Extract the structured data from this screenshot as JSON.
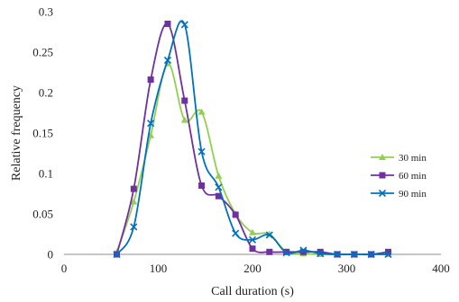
{
  "chart_data": {
    "type": "line",
    "xlabel": "Call duration (s)",
    "ylabel": "Relative frequency",
    "xlim": [
      0,
      400
    ],
    "ylim": [
      0,
      0.3
    ],
    "x_ticks": [
      "0",
      "100",
      "200",
      "300",
      "400"
    ],
    "y_ticks": [
      "0",
      "0.05",
      "0.1",
      "0.15",
      "0.2",
      "0.25",
      "0.3"
    ],
    "grid": false,
    "legend_position": "right",
    "series": [
      {
        "name": "30 min",
        "color": "#92d050",
        "marker": "triangle",
        "points": [
          [
            56,
            0.003
          ],
          [
            74,
            0.065
          ],
          [
            92,
            0.147
          ],
          [
            110,
            0.236
          ],
          [
            128,
            0.166
          ],
          [
            146,
            0.176
          ],
          [
            164,
            0.097
          ],
          [
            182,
            0.05
          ],
          [
            200,
            0.027
          ],
          [
            218,
            0.025
          ],
          [
            236,
            0.003
          ],
          [
            254,
            0.001
          ],
          [
            272,
            0.0
          ],
          [
            290,
            0.0
          ],
          [
            308,
            0.0
          ],
          [
            326,
            0.0
          ],
          [
            344,
            0.0
          ]
        ]
      },
      {
        "name": "60 min",
        "color": "#7030a0",
        "marker": "square",
        "points": [
          [
            56,
            0.0
          ],
          [
            74,
            0.081
          ],
          [
            92,
            0.216
          ],
          [
            110,
            0.285
          ],
          [
            128,
            0.19
          ],
          [
            146,
            0.085
          ],
          [
            164,
            0.072
          ],
          [
            182,
            0.049
          ],
          [
            200,
            0.007
          ],
          [
            218,
            0.003
          ],
          [
            236,
            0.003
          ],
          [
            254,
            0.003
          ],
          [
            272,
            0.003
          ],
          [
            290,
            0.0
          ],
          [
            308,
            0.0
          ],
          [
            326,
            0.0
          ],
          [
            344,
            0.003
          ]
        ]
      },
      {
        "name": "90 min",
        "color": "#0070c0",
        "marker": "x",
        "points": [
          [
            56,
            0.0
          ],
          [
            74,
            0.034
          ],
          [
            92,
            0.162
          ],
          [
            110,
            0.24
          ],
          [
            128,
            0.284
          ],
          [
            146,
            0.127
          ],
          [
            164,
            0.083
          ],
          [
            182,
            0.026
          ],
          [
            200,
            0.018
          ],
          [
            218,
            0.024
          ],
          [
            236,
            0.002
          ],
          [
            254,
            0.005
          ],
          [
            272,
            0.001
          ],
          [
            290,
            0.0
          ],
          [
            308,
            0.0
          ],
          [
            326,
            0.0
          ],
          [
            344,
            0.0
          ]
        ]
      }
    ]
  }
}
